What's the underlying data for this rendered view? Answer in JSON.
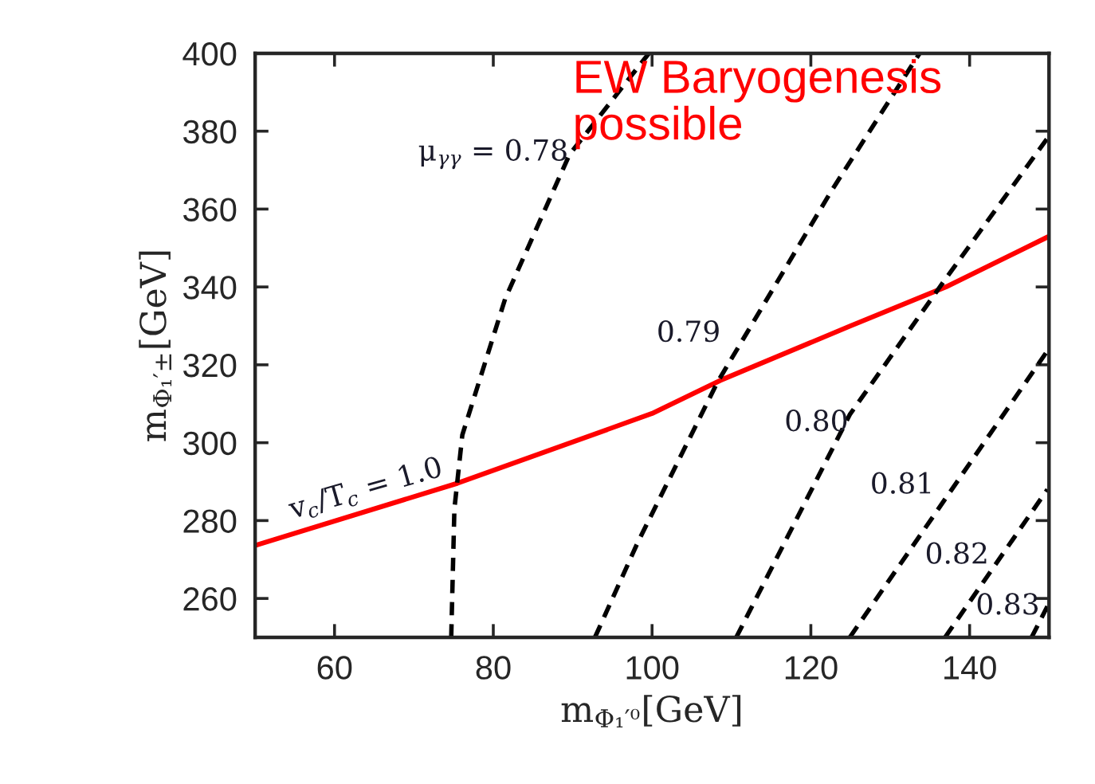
{
  "chart_data": {
    "type": "line",
    "xlabel": "m$_{Φ₁′⁰}$[GeV]",
    "ylabel": "m$_{Φ₁′±}$[GeV]",
    "xlim": [
      50,
      150
    ],
    "xticks": [
      60,
      80,
      100,
      120,
      140
    ],
    "ylim": [
      250,
      400
    ],
    "yticks": [
      260,
      280,
      300,
      320,
      340,
      360,
      380,
      400
    ],
    "grid": false,
    "legend": false,
    "marker": "none",
    "series": [
      {
        "name": "v$_{c}$/T$_{c}$ = 1.0",
        "color": "#ff0000",
        "line_style": "solid",
        "x": [
          50,
          75.5,
          100,
          108.6,
          125,
          137,
          150
        ],
        "values": [
          273.6,
          289.6,
          307.5,
          316,
          330,
          340,
          353
        ]
      },
      {
        "name": "μ$_{γγ}$ = 0.78",
        "color": "#000000",
        "line_style": "dashed",
        "x": [
          74.7,
          75.1,
          76.1,
          81.5,
          89.6,
          99.6
        ],
        "values": [
          250,
          283,
          302,
          337,
          374,
          400
        ]
      },
      {
        "name": "0.79",
        "color": "#000000",
        "line_style": "dashed",
        "x": [
          92.8,
          98.2,
          108.2,
          122.6,
          133.7
        ],
        "values": [
          250,
          274.4,
          315.4,
          364.7,
          400
        ]
      },
      {
        "name": "0.80",
        "color": "#000000",
        "line_style": "dashed",
        "x": [
          110.6,
          124.9,
          136.7,
          149.8
        ],
        "values": [
          250,
          307.2,
          341.3,
          378.2
        ]
      },
      {
        "name": "0.81",
        "color": "#000000",
        "line_style": "dashed",
        "x": [
          124.9,
          149.8
        ],
        "values": [
          250,
          323.6
        ]
      },
      {
        "name": "0.82",
        "color": "#000000",
        "line_style": "dashed",
        "x": [
          136.9,
          149.8
        ],
        "values": [
          250,
          288
        ]
      },
      {
        "name": "0.83",
        "color": "#000000",
        "line_style": "dashed",
        "x": [
          147.8,
          149.8
        ],
        "values": [
          250,
          258
        ]
      }
    ],
    "annotations": [
      "EW Baryogenesis\npossible"
    ]
  }
}
